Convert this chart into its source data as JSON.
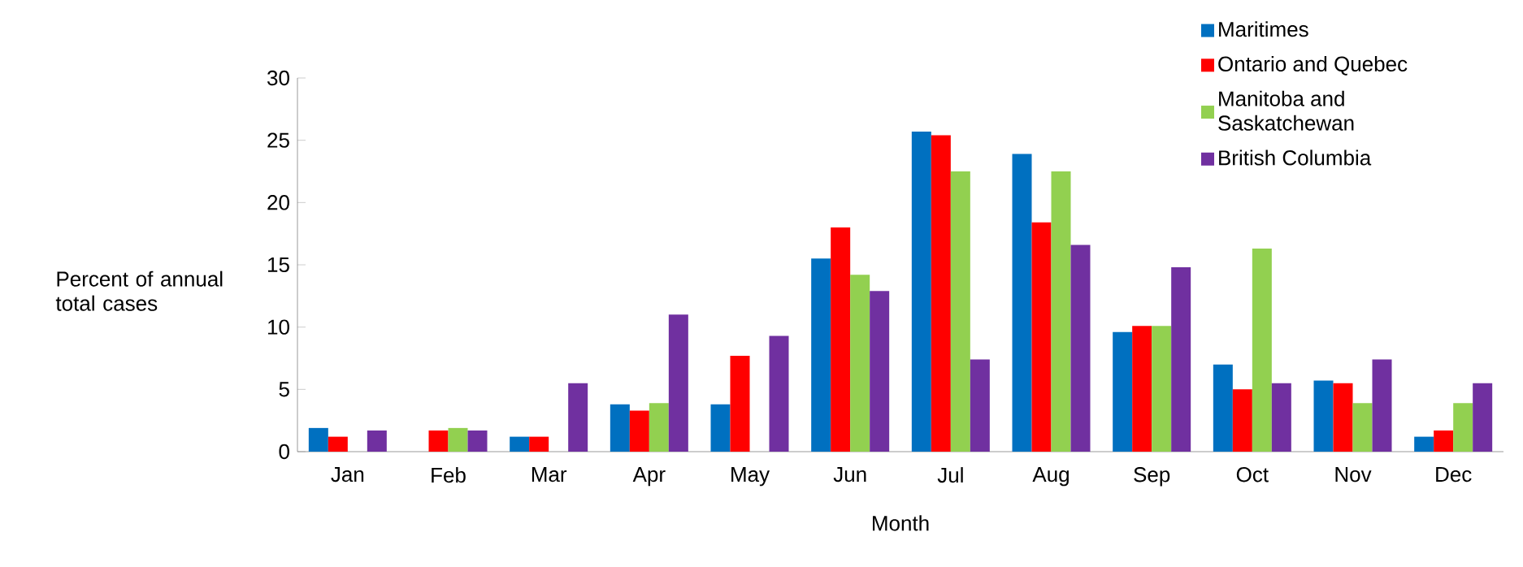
{
  "chart_data": {
    "type": "bar",
    "xlabel": "Month",
    "ylabel": "Percent of annual total cases",
    "categories": [
      "Jan",
      "Feb",
      "Mar",
      "Apr",
      "May",
      "Jun",
      "Jul",
      "Aug",
      "Sep",
      "Oct",
      "Nov",
      "Dec"
    ],
    "series": [
      {
        "name": "Maritimes",
        "color": "#0070c0",
        "values": [
          1.9,
          null,
          1.2,
          3.8,
          3.8,
          15.5,
          25.7,
          23.9,
          9.6,
          7.0,
          5.7,
          1.2
        ]
      },
      {
        "name": "Ontario and Quebec",
        "color": "#ff0000",
        "values": [
          1.2,
          1.7,
          1.2,
          3.3,
          7.7,
          18.0,
          25.4,
          18.4,
          10.1,
          5.0,
          5.5,
          1.7
        ]
      },
      {
        "name": "Manitoba and Saskatchewan",
        "color": "#92d050",
        "values": [
          null,
          1.9,
          null,
          3.9,
          null,
          14.2,
          22.5,
          22.5,
          10.1,
          16.3,
          3.9,
          3.9
        ]
      },
      {
        "name": "British Columbia",
        "color": "#7030a0",
        "values": [
          1.7,
          1.7,
          5.5,
          11.0,
          9.3,
          12.9,
          7.4,
          16.6,
          14.8,
          5.5,
          7.4,
          5.5
        ]
      }
    ],
    "ylim": [
      0,
      30
    ],
    "yticks": [
      0,
      5,
      10,
      15,
      20,
      25,
      30
    ],
    "grid": false,
    "legend": "top right"
  }
}
